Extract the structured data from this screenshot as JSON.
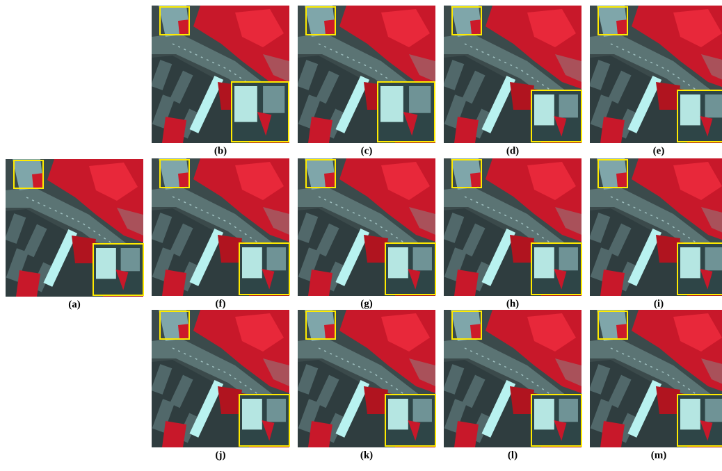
{
  "panels": [
    {
      "label": "(a)"
    },
    {
      "label": "(b)"
    },
    {
      "label": "(c)"
    },
    {
      "label": "(d)"
    },
    {
      "label": "(e)"
    },
    {
      "label": "(f)"
    },
    {
      "label": "(g)"
    },
    {
      "label": "(h)"
    },
    {
      "label": "(i)"
    },
    {
      "label": "(j)"
    },
    {
      "label": "(k)"
    },
    {
      "label": "(l)"
    },
    {
      "label": "(m)"
    }
  ]
}
